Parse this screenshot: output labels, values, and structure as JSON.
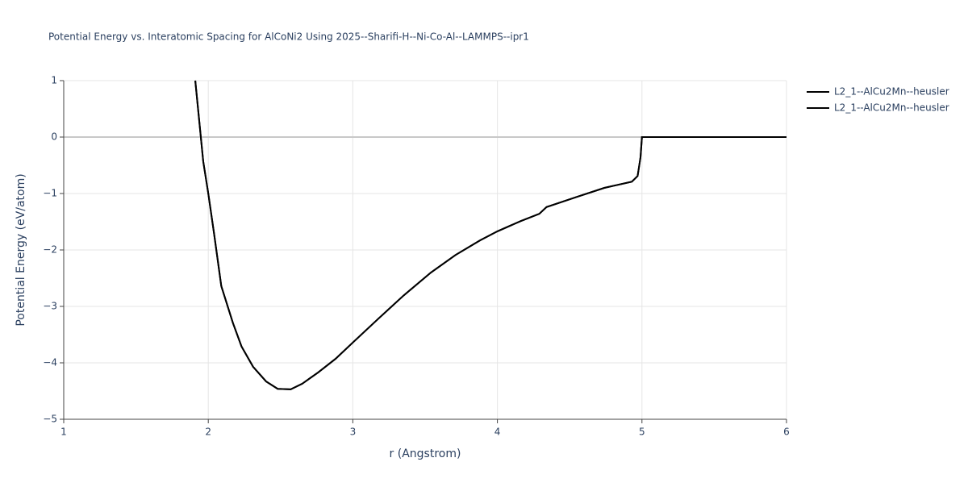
{
  "chart_data": {
    "type": "line",
    "title": "Potential Energy vs. Interatomic Spacing for AlCoNi2 Using 2025--Sharifi-H--Ni-Co-Al--LAMMPS--ipr1",
    "x_label": "r (Angstrom)",
    "y_label": "Potential Energy (eV/atom)",
    "x": [
      1.91,
      1.965,
      2.0,
      2.04,
      2.09,
      2.17,
      2.23,
      2.31,
      2.4,
      2.48,
      2.57,
      2.65,
      2.76,
      2.88,
      3.0,
      3.18,
      3.35,
      3.54,
      3.71,
      3.88,
      4.0,
      4.16,
      4.29,
      4.34,
      4.55,
      4.74,
      4.93,
      4.97,
      4.99,
      5.0,
      6.0
    ],
    "series": [
      {
        "name": "L2_1--AlCu2Mn--heusler",
        "color": "#000000",
        "values": [
          1,
          -0.43,
          -1.0,
          -1.71,
          -2.64,
          -3.29,
          -3.71,
          -4.07,
          -4.33,
          -4.46,
          -4.47,
          -4.37,
          -4.17,
          -3.93,
          -3.64,
          -3.21,
          -2.81,
          -2.4,
          -2.09,
          -1.83,
          -1.67,
          -1.49,
          -1.36,
          -1.24,
          -1.06,
          -0.9,
          -0.79,
          -0.69,
          -0.36,
          0,
          0
        ]
      },
      {
        "name": "L2_1--AlCu2Mn--heusler",
        "color": "#000000",
        "values": [
          1,
          -0.43,
          -1.0,
          -1.71,
          -2.64,
          -3.29,
          -3.71,
          -4.07,
          -4.33,
          -4.46,
          -4.47,
          -4.37,
          -4.17,
          -3.93,
          -3.64,
          -3.21,
          -2.81,
          -2.4,
          -2.09,
          -1.83,
          -1.67,
          -1.49,
          -1.36,
          -1.24,
          -1.06,
          -0.9,
          -0.79,
          -0.69,
          -0.36,
          0,
          0
        ]
      }
    ],
    "xlim": [
      1,
      6
    ],
    "xticks": [
      1,
      2,
      3,
      4,
      5,
      6
    ],
    "ylim": [
      -5,
      1
    ],
    "yticks": [
      {
        "value": -5,
        "label": "−5"
      },
      {
        "value": -4,
        "label": "−4"
      },
      {
        "value": -3,
        "label": "−3"
      },
      {
        "value": -2,
        "label": "−2"
      },
      {
        "value": -1,
        "label": "−1"
      },
      0,
      1
    ],
    "grid": true
  }
}
